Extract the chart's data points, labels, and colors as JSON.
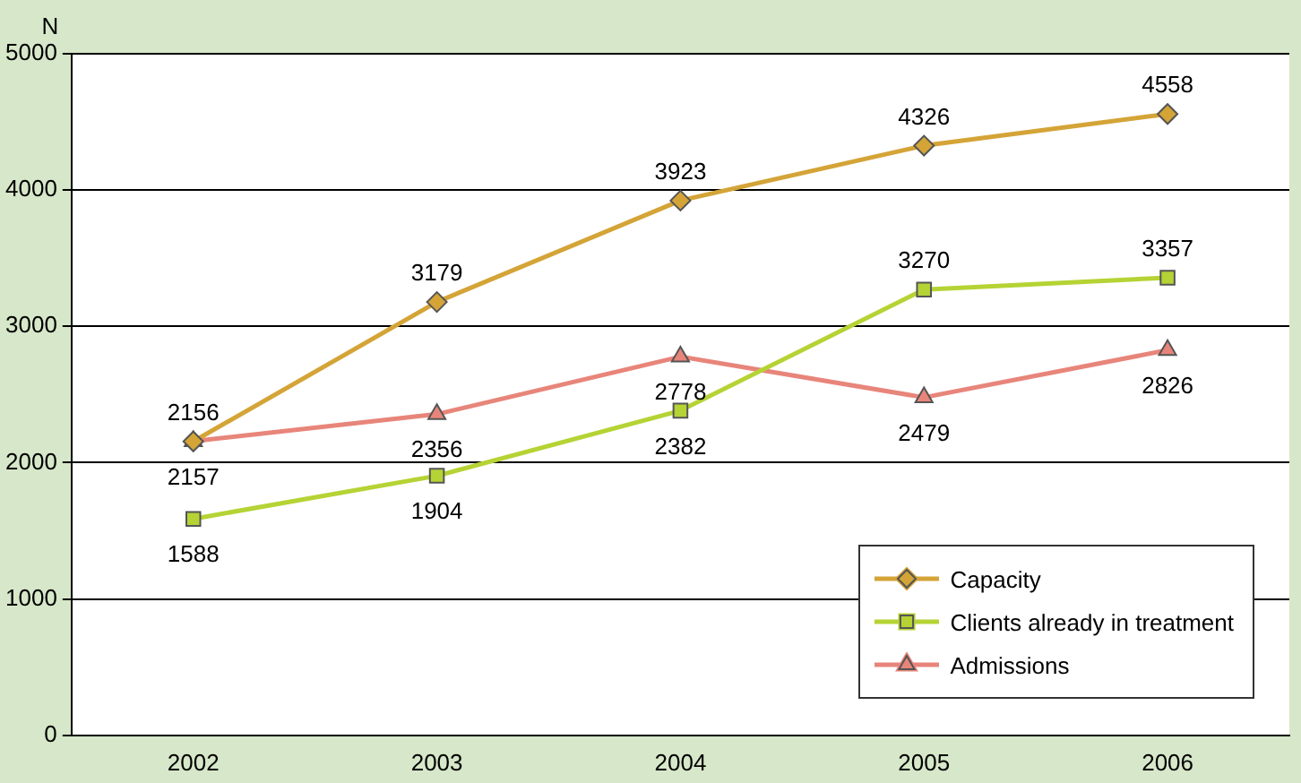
{
  "chart_data": {
    "type": "line",
    "ylabel": "N",
    "categories": [
      "2002",
      "2003",
      "2004",
      "2005",
      "2006"
    ],
    "series": [
      {
        "name": "Capacity",
        "color": "#d4a437",
        "marker": "diamond",
        "values": [
          2156,
          3179,
          3923,
          4326,
          4558
        ]
      },
      {
        "name": "Clients already in treatment",
        "color": "#b5d334",
        "marker": "square",
        "values": [
          1588,
          1904,
          2382,
          3270,
          3357
        ]
      },
      {
        "name": "Admissions",
        "color": "#e8857a",
        "marker": "triangle",
        "values": [
          2157,
          2356,
          2778,
          2479,
          2826
        ]
      }
    ],
    "ylim": [
      0,
      5000
    ],
    "yticks": [
      0,
      1000,
      2000,
      3000,
      4000,
      5000
    ],
    "grid": "y",
    "legend": "bottom right",
    "data_labels": true
  }
}
